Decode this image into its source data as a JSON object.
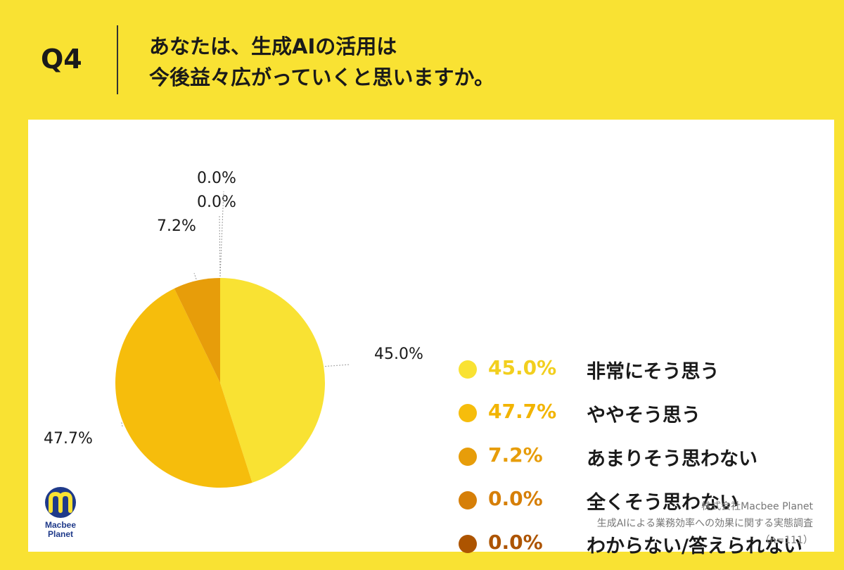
{
  "header": {
    "qnum": "Q4",
    "title_line1": "あなたは、生成AIの活用は",
    "title_line2": "今後益々広がっていくと思いますか。"
  },
  "chart_data": {
    "type": "pie",
    "title": "",
    "slices": [
      {
        "label": "非常にそう思う",
        "value": 45.0,
        "display": "45.0%",
        "color": "#f9e233",
        "pct_color": "#f2cf1e"
      },
      {
        "label": "ややそう思う",
        "value": 47.7,
        "display": "47.7%",
        "color": "#f6bd0c",
        "pct_color": "#f2b400"
      },
      {
        "label": "あまりそう思わない",
        "value": 7.2,
        "display": "7.2%",
        "color": "#e79d0a",
        "pct_color": "#e79d0a"
      },
      {
        "label": "全くそう思わない",
        "value": 0.0,
        "display": "0.0%",
        "color": "#d67f08",
        "pct_color": "#d67f08"
      },
      {
        "label": "わからない/答えられない",
        "value": 0.0,
        "display": "0.0%",
        "color": "#ad5400",
        "pct_color": "#ad5400"
      }
    ],
    "legend_position": "right"
  },
  "logo": {
    "line1": "Macbee",
    "line2": "Planet"
  },
  "source": {
    "company": "株式会社Macbee Planet",
    "survey": "生成AIによる業務効率への効果に関する実態調査",
    "sample": "（n=111）"
  }
}
